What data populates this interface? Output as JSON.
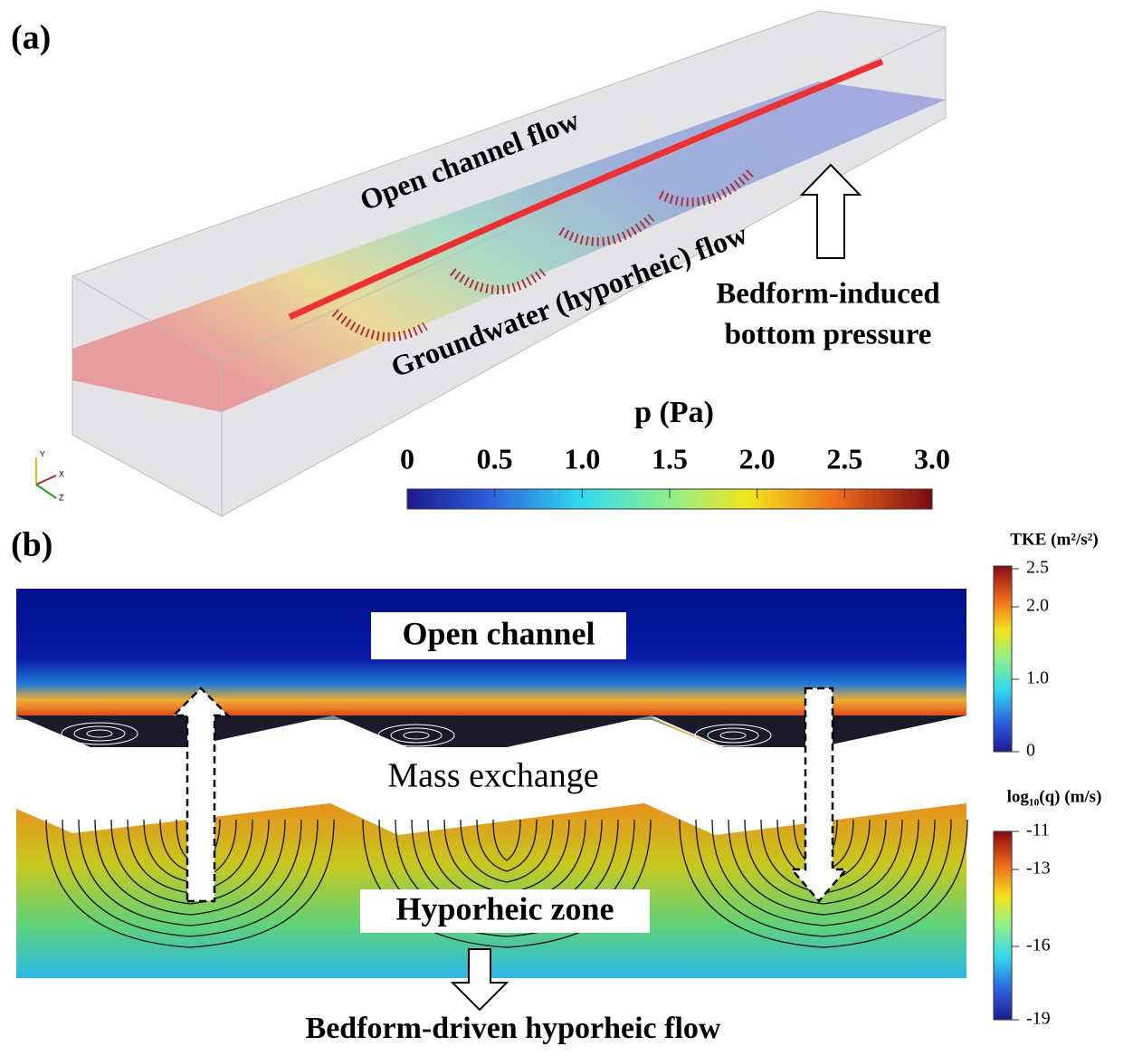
{
  "panel_a": {
    "label": "(a)",
    "annotations": [
      "Open channel flow",
      "Groundwater (hyporheic) flow",
      "Bedform-induced",
      "bottom pressure"
    ],
    "axes": [
      "Y",
      "X",
      "Z"
    ],
    "colorbar": {
      "title": "p (Pa)",
      "ticks": [
        "0",
        "0.5",
        "1.0",
        "1.5",
        "2.0",
        "2.5",
        "3.0"
      ]
    }
  },
  "panel_b": {
    "label": "(b)",
    "annotations": [
      "Open channel",
      "Mass exchange",
      "Hyporheic zone",
      "Bedform-driven hyporheic flow"
    ],
    "tke_colorbar": {
      "title": "TKE (m²/s²)",
      "ticks": [
        "2.5",
        "2.0",
        "1.0",
        "0"
      ]
    },
    "q_colorbar": {
      "title": "log₁₀(q) (m/s)",
      "ticks": [
        "-11",
        "-13",
        "-16",
        "-19"
      ]
    }
  }
}
